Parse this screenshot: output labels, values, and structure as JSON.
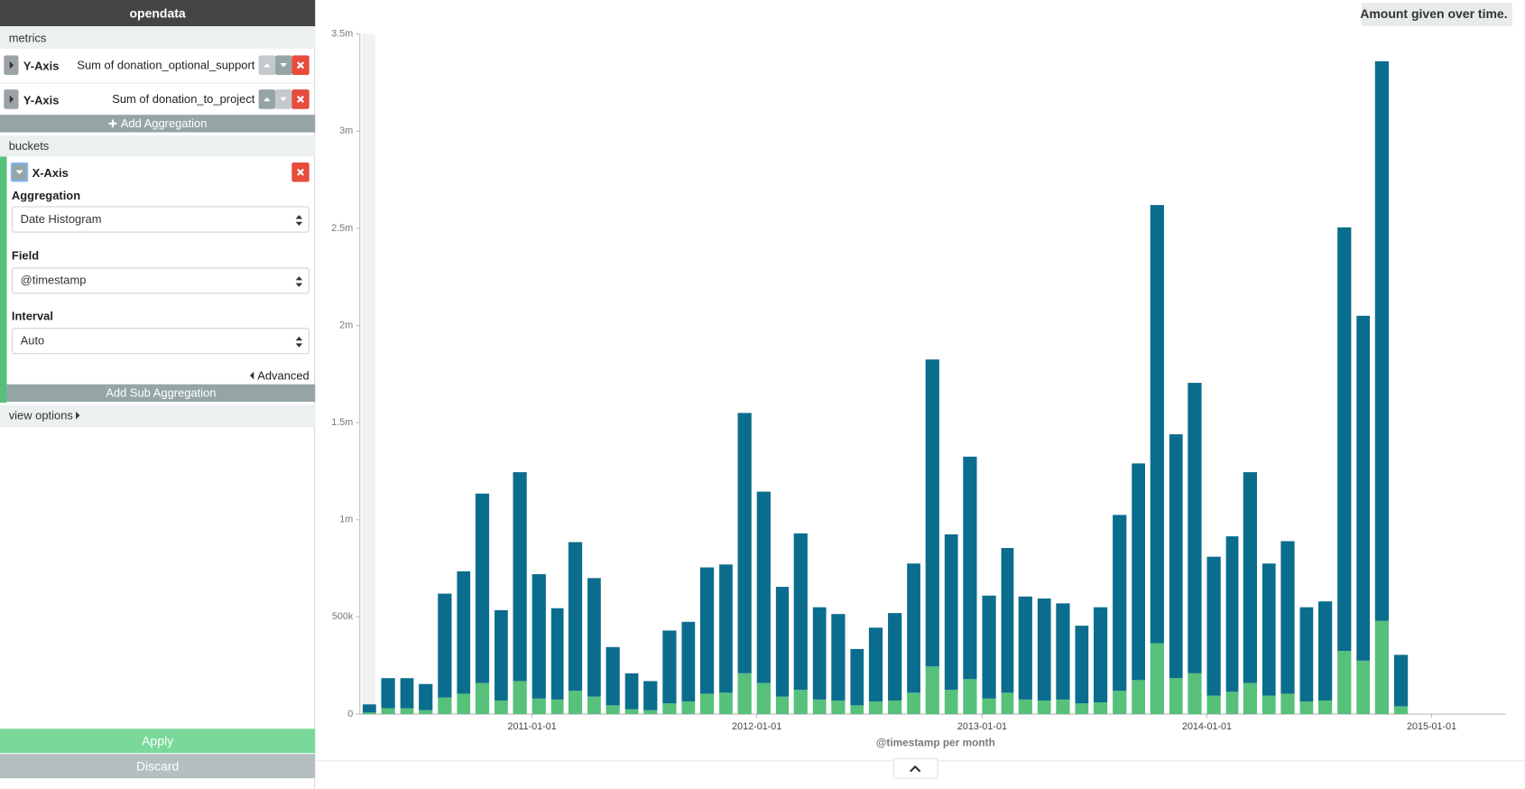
{
  "app": {
    "title": "opendata"
  },
  "sidebar": {
    "metrics_label": "metrics",
    "metrics": [
      {
        "axis": "Y-Axis"
      },
      {
        "axis": "Y-Axis"
      }
    ],
    "add_aggregation": "Add Aggregation",
    "buckets_label": "buckets",
    "bucket": {
      "axis": "X-Axis",
      "fields": [
        {
          "label": "Aggregation",
          "value": "Date Histogram"
        },
        {
          "label": "Field",
          "value": "@timestamp"
        },
        {
          "label": "Interval",
          "value": "Auto"
        }
      ],
      "advanced": "Advanced",
      "add_sub": "Add Sub Aggregation"
    },
    "view_options": "view options",
    "apply": "Apply",
    "discard": "Discard"
  },
  "chart_data": {
    "type": "bar",
    "stacked": true,
    "title": "Amount given over time.",
    "x_label": "@timestamp per month",
    "x": [
      "2010-04-01",
      "2010-05-01",
      "2010-06-01",
      "2010-07-01",
      "2010-08-01",
      "2010-09-01",
      "2010-10-01",
      "2010-11-01",
      "2010-12-01",
      "2011-01-01",
      "2011-02-01",
      "2011-03-01",
      "2011-04-01",
      "2011-05-01",
      "2011-06-01",
      "2011-07-01",
      "2011-08-01",
      "2011-09-01",
      "2011-10-01",
      "2011-11-01",
      "2011-12-01",
      "2012-01-01",
      "2012-02-01",
      "2012-03-01",
      "2012-04-01",
      "2012-05-01",
      "2012-06-01",
      "2012-07-01",
      "2012-08-01",
      "2012-09-01",
      "2012-10-01",
      "2012-11-01",
      "2012-12-01",
      "2013-01-01",
      "2013-02-01",
      "2013-03-01",
      "2013-04-01",
      "2013-05-01",
      "2013-06-01",
      "2013-07-01",
      "2013-08-01",
      "2013-09-01",
      "2013-10-01",
      "2013-11-01",
      "2013-12-01",
      "2014-01-01",
      "2014-02-01",
      "2014-03-01",
      "2014-04-01",
      "2014-05-01",
      "2014-06-01",
      "2014-07-01",
      "2014-08-01",
      "2014-09-01",
      "2014-10-01",
      "2014-11-01"
    ],
    "xlim": [
      "2010-04-01",
      "2015-05-01"
    ],
    "xticks": [
      "2011-01-01",
      "2012-01-01",
      "2013-01-01",
      "2014-01-01",
      "2015-01-01"
    ],
    "ylim": [
      0,
      3500000
    ],
    "yticks": [
      0,
      {
        "value": 500000,
        "label": "500k"
      },
      {
        "value": 1000000,
        "label": "1m"
      },
      {
        "value": 1500000,
        "label": "1.5m"
      },
      {
        "value": 2000000,
        "label": "2m"
      },
      {
        "value": 2500000,
        "label": "2.5m"
      },
      {
        "value": 3000000,
        "label": "3m"
      },
      {
        "value": 3500000,
        "label": "3.5m"
      }
    ],
    "series": [
      {
        "name": "Sum of donation_optional_support",
        "color": "#57c17b",
        "values": [
          8000,
          30000,
          30000,
          20000,
          85000,
          105000,
          160000,
          70000,
          170000,
          80000,
          75000,
          120000,
          90000,
          45000,
          25000,
          20000,
          55000,
          65000,
          105000,
          110000,
          210000,
          160000,
          90000,
          125000,
          75000,
          70000,
          45000,
          65000,
          70000,
          110000,
          245000,
          125000,
          180000,
          80000,
          110000,
          75000,
          70000,
          75000,
          55000,
          60000,
          120000,
          175000,
          365000,
          185000,
          210000,
          95000,
          115000,
          160000,
          95000,
          105000,
          65000,
          70000,
          325000,
          275000,
          480000,
          40000
        ]
      },
      {
        "name": "Sum of donation_to_project",
        "color": "#0b6d8e",
        "values": [
          42000,
          155000,
          155000,
          135000,
          535000,
          630000,
          975000,
          465000,
          1075000,
          640000,
          470000,
          765000,
          610000,
          300000,
          185000,
          150000,
          375000,
          410000,
          650000,
          660000,
          1340000,
          985000,
          565000,
          805000,
          475000,
          445000,
          290000,
          380000,
          450000,
          665000,
          1580000,
          800000,
          1145000,
          530000,
          745000,
          530000,
          525000,
          495000,
          400000,
          490000,
          905000,
          1115000,
          2255000,
          1255000,
          1495000,
          715000,
          800000,
          1085000,
          680000,
          785000,
          485000,
          510000,
          2180000,
          1775000,
          2880000,
          265000
        ]
      }
    ]
  }
}
